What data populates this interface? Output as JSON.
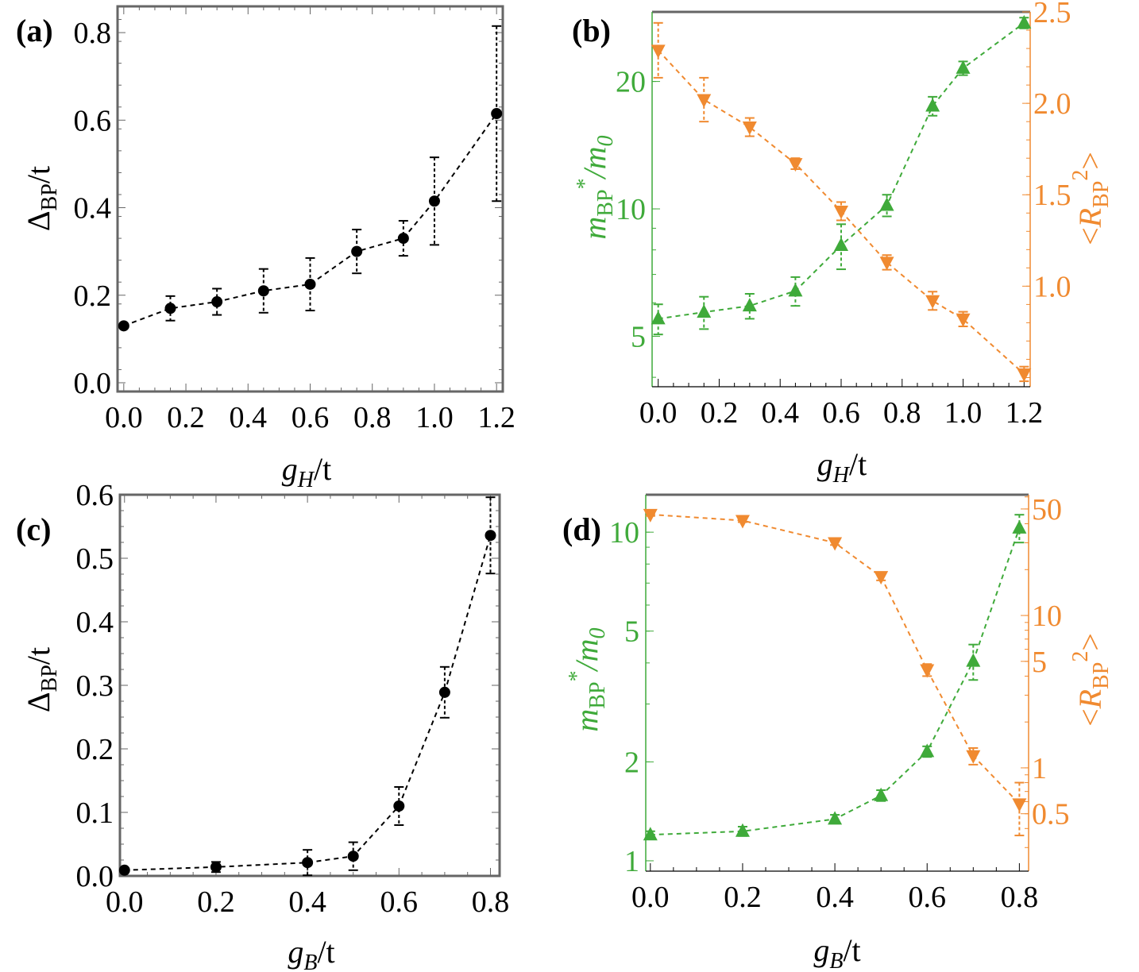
{
  "figure": {
    "colors": {
      "black": "#000000",
      "frame": "#666666",
      "green": "#3faa3a",
      "orange": "#f08a30"
    }
  },
  "chart_data": [
    {
      "panel": "(a)",
      "type": "scatter",
      "xlabel": {
        "main": "g",
        "sub": "H",
        "rest": "/t"
      },
      "ylabel": {
        "main": "Δ",
        "sub": "BP",
        "rest": "/t"
      },
      "xlim": [
        -0.02,
        1.22
      ],
      "ylim": [
        -0.02,
        0.86
      ],
      "xticks": [
        "0.0",
        "0.2",
        "0.4",
        "0.6",
        "0.8",
        "1.0",
        "1.2"
      ],
      "yticks": [
        "0.0",
        "0.2",
        "0.4",
        "0.6",
        "0.8"
      ],
      "grid": false,
      "series": [
        {
          "color": "#000000",
          "marker": "circle",
          "x": [
            0.0,
            0.15,
            0.3,
            0.45,
            0.6,
            0.75,
            0.9,
            1.0,
            1.2
          ],
          "y": [
            0.13,
            0.17,
            0.185,
            0.21,
            0.225,
            0.3,
            0.33,
            0.415,
            0.615
          ],
          "err": [
            0.0,
            0.028,
            0.03,
            0.05,
            0.06,
            0.05,
            0.04,
            0.1,
            0.2
          ]
        }
      ]
    },
    {
      "panel": "(b)",
      "type": "scatter",
      "xlabel": {
        "main": "g",
        "sub": "H",
        "rest": "/t"
      },
      "ylabel": {
        "main": "m",
        "sub": "BP",
        "sup": "*",
        "rest": "/m",
        "sub2": "0"
      },
      "y2label": {
        "pre": "<",
        "main": "R",
        "sub": "BP",
        "sup": "2",
        "post": ">"
      },
      "xlim": [
        -0.02,
        1.22
      ],
      "ylim": [
        3.8,
        29.2
      ],
      "yscale": "log",
      "y2lim": [
        0.45,
        2.5
      ],
      "xticks": [
        "0.0",
        "0.2",
        "0.4",
        "0.6",
        "0.8",
        "1.0",
        "1.2"
      ],
      "yticks": [
        "5",
        "10",
        "20"
      ],
      "y2ticks": [
        "1.0",
        "1.5",
        "2.0",
        "2.5"
      ],
      "grid": false,
      "series": [
        {
          "axis": "left",
          "color": "#3faa3a",
          "marker": "triangle-up",
          "x": [
            0.0,
            0.15,
            0.3,
            0.45,
            0.6,
            0.75,
            0.9,
            1.0,
            1.2
          ],
          "y": [
            5.5,
            5.7,
            5.9,
            6.4,
            8.2,
            10.2,
            17.5,
            21.5,
            27.5
          ],
          "err": [
            0.45,
            0.5,
            0.4,
            0.5,
            1.0,
            0.6,
            0.9,
            0.8,
            0.8
          ]
        },
        {
          "axis": "right",
          "color": "#f08a30",
          "marker": "triangle-down",
          "x": [
            0.0,
            0.15,
            0.3,
            0.45,
            0.6,
            0.75,
            0.9,
            1.0,
            1.2
          ],
          "y": [
            2.29,
            2.02,
            1.87,
            1.67,
            1.41,
            1.13,
            0.92,
            0.82,
            0.52
          ],
          "err": [
            0.15,
            0.12,
            0.05,
            0.03,
            0.05,
            0.04,
            0.05,
            0.04,
            0.04
          ]
        }
      ]
    },
    {
      "panel": "(c)",
      "type": "scatter",
      "xlabel": {
        "main": "g",
        "sub": "B",
        "rest": "/t"
      },
      "ylabel": {
        "main": "Δ",
        "sub": "BP",
        "rest": "/t"
      },
      "xlim": [
        -0.01,
        0.82
      ],
      "ylim": [
        0.0,
        0.6
      ],
      "xticks": [
        "0.0",
        "0.2",
        "0.4",
        "0.6",
        "0.8"
      ],
      "yticks": [
        "0.0",
        "0.1",
        "0.2",
        "0.3",
        "0.4",
        "0.5",
        "0.6"
      ],
      "grid": false,
      "series": [
        {
          "color": "#000000",
          "marker": "circle",
          "x": [
            0.0,
            0.2,
            0.4,
            0.5,
            0.6,
            0.7,
            0.8
          ],
          "y": [
            0.009,
            0.014,
            0.021,
            0.031,
            0.11,
            0.289,
            0.536
          ],
          "err": [
            0.0,
            0.008,
            0.02,
            0.022,
            0.03,
            0.04,
            0.06
          ]
        }
      ]
    },
    {
      "panel": "(d)",
      "type": "scatter",
      "xlabel": {
        "main": "g",
        "sub": "B",
        "rest": "/t"
      },
      "ylabel": {
        "main": "m",
        "sub": "BP",
        "sup": "*",
        "rest": "/m",
        "sub2": "0"
      },
      "y2label": {
        "pre": "<",
        "main": "R",
        "sub": "BP",
        "sup": "2",
        "post": ">"
      },
      "xlim": [
        -0.01,
        0.82
      ],
      "ylim": [
        0.93,
        13.0
      ],
      "yscale": "log",
      "y2lim": [
        0.21,
        62
      ],
      "y2scale": "log",
      "xticks": [
        "0.0",
        "0.2",
        "0.4",
        "0.6",
        "0.8"
      ],
      "yticks": [
        "1",
        "2",
        "5",
        "10"
      ],
      "y2ticks": [
        "0.5",
        "1",
        "5",
        "10",
        "50"
      ],
      "grid": false,
      "series": [
        {
          "axis": "left",
          "color": "#3faa3a",
          "marker": "triangle-up",
          "x": [
            0.0,
            0.2,
            0.4,
            0.5,
            0.6,
            0.7,
            0.8
          ],
          "y": [
            1.2,
            1.23,
            1.34,
            1.58,
            2.15,
            4.05,
            10.3
          ],
          "err": [
            0.03,
            0.04,
            0.04,
            0.06,
            0.08,
            0.5,
            1.0
          ]
        },
        {
          "axis": "right",
          "color": "#f08a30",
          "marker": "triangle-down",
          "x": [
            0.0,
            0.2,
            0.4,
            0.5,
            0.6,
            0.7,
            0.8
          ],
          "y": [
            46.0,
            42.0,
            30.0,
            18.0,
            4.4,
            1.2,
            0.58
          ],
          "err": [
            1.0,
            1.0,
            1.0,
            1.0,
            0.4,
            0.15,
            0.22
          ]
        }
      ]
    }
  ]
}
